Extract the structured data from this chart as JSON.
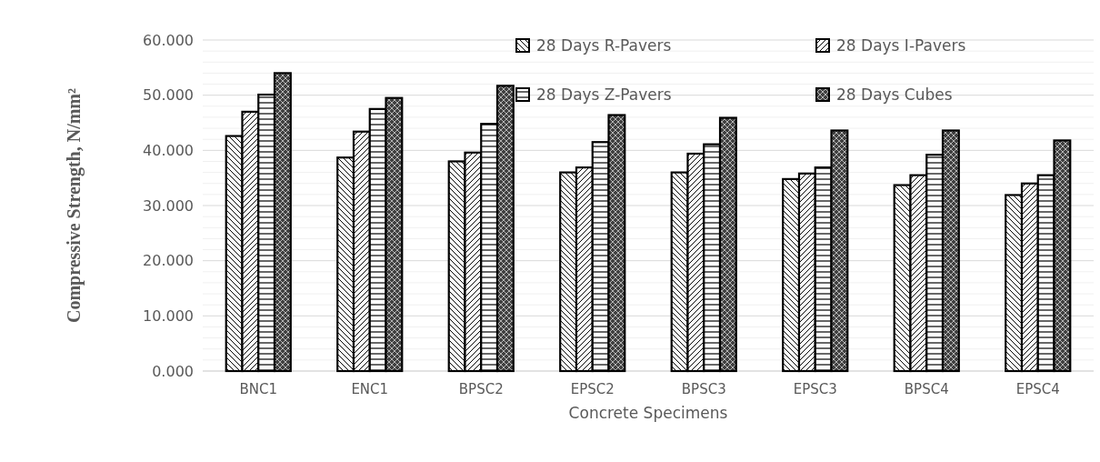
{
  "chart_data": {
    "type": "bar",
    "xlabel": "Concrete Specimens",
    "ylabel": "Compressive Strength, N/mm²",
    "categories": [
      "BNC1",
      "ENC1",
      "BPSC2",
      "EPSC2",
      "BPSC3",
      "EPSC3",
      "BPSC4",
      "EPSC4"
    ],
    "series": [
      {
        "name": "28 Days R-Pavers",
        "color": "#000000",
        "values": [
          42.6,
          38.7,
          38.0,
          36.0,
          36.0,
          34.8,
          33.7,
          31.9
        ]
      },
      {
        "name": "28 Days I-Pavers",
        "color": "#000000",
        "values": [
          47.0,
          43.4,
          39.6,
          36.9,
          39.4,
          35.8,
          35.5,
          34.0
        ]
      },
      {
        "name": "28 Days Z-Pavers",
        "color": "#000000",
        "values": [
          50.1,
          47.5,
          44.8,
          41.5,
          41.1,
          36.9,
          39.2,
          35.5
        ]
      },
      {
        "name": "28 Days Cubes",
        "color": "#000000",
        "values": [
          54.0,
          49.5,
          51.7,
          46.4,
          45.9,
          43.6,
          43.6,
          41.8
        ]
      }
    ],
    "ylim": [
      0,
      60
    ],
    "yticks": [
      {
        "value": 0,
        "label": "0.000"
      },
      {
        "value": 2,
        "label": null
      },
      {
        "value": 4,
        "label": null
      },
      {
        "value": 6,
        "label": null
      },
      {
        "value": 8,
        "label": null
      },
      {
        "value": 10,
        "label": "10.000"
      },
      {
        "value": 12,
        "label": null
      },
      {
        "value": 14,
        "label": null
      },
      {
        "value": 16,
        "label": null
      },
      {
        "value": 18,
        "label": null
      },
      {
        "value": 20,
        "label": "20.000"
      },
      {
        "value": 22,
        "label": null
      },
      {
        "value": 24,
        "label": null
      },
      {
        "value": 26,
        "label": null
      },
      {
        "value": 28,
        "label": null
      },
      {
        "value": 30,
        "label": "30.000"
      },
      {
        "value": 32,
        "label": null
      },
      {
        "value": 34,
        "label": null
      },
      {
        "value": 36,
        "label": null
      },
      {
        "value": 38,
        "label": null
      },
      {
        "value": 40,
        "label": "40.000"
      },
      {
        "value": 42,
        "label": null
      },
      {
        "value": 44,
        "label": null
      },
      {
        "value": 46,
        "label": null
      },
      {
        "value": 48,
        "label": null
      },
      {
        "value": 50,
        "label": "50.000"
      },
      {
        "value": 52,
        "label": null
      },
      {
        "value": 54,
        "label": null
      },
      {
        "value": 56,
        "label": null
      },
      {
        "value": 58,
        "label": null
      },
      {
        "value": 60,
        "label": "60.000"
      }
    ],
    "grid": "y",
    "legend": "top right"
  }
}
